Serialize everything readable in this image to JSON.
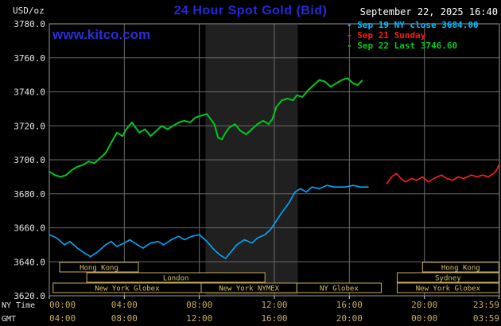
{
  "header": {
    "units_label": "USD/oz",
    "title": "24 Hour Spot Gold (Bid)",
    "datetime": "September 22, 2025 16:40",
    "watermark": "www.kitco.com",
    "legend": [
      {
        "label": "- Sep 19 NY close 3684.00",
        "color": "#00c0ff"
      },
      {
        "label": "- Sep 21 Sunday",
        "color": "#ff1a1a"
      },
      {
        "label": "- Sep 22 Last 3746.60",
        "color": "#00cc22"
      }
    ]
  },
  "axes": {
    "ny_time_label": "NY Time",
    "gmt_label": "GMT",
    "x_tick_hours": [
      0,
      4,
      8,
      12,
      16,
      20,
      23.983
    ],
    "ny_tick_labels": [
      "00:00",
      "04:00",
      "08:00",
      "12:00",
      "16:00",
      "20:00",
      "23:59"
    ],
    "gmt_tick_labels": [
      "04:00",
      "08:00",
      "12:00",
      "16:00",
      "20:00",
      "00:00",
      "03:59"
    ],
    "y_tick_labels": [
      "3780.0",
      "3760.0",
      "3740.0",
      "3720.0",
      "3700.0",
      "3680.0",
      "3660.0",
      "3640.0",
      "3620.0"
    ],
    "y_tick_values": [
      3780,
      3760,
      3740,
      3720,
      3700,
      3680,
      3660,
      3640,
      3620
    ]
  },
  "shaded_band": {
    "start": 8.33,
    "end": 13.25,
    "color": "#202020"
  },
  "sessions": [
    {
      "label": "Hong Kong",
      "row": 0,
      "start": 0.55,
      "end": 4.75
    },
    {
      "label": "Hong Kong",
      "row": 0,
      "start": 19.9,
      "end": 23.97
    },
    {
      "label": "London",
      "row": 1,
      "start": 2.0,
      "end": 11.5
    },
    {
      "label": "Sydney",
      "row": 1,
      "start": 18.55,
      "end": 23.97
    },
    {
      "label": "New York Globex",
      "row": 2,
      "start": 0.2,
      "end": 8.1
    },
    {
      "label": "New York NYMEX",
      "row": 2,
      "start": 8.1,
      "end": 13.2
    },
    {
      "label": "NY Globex",
      "row": 2,
      "start": 13.2,
      "end": 17.7
    },
    {
      "label": "New York Globex",
      "row": 2,
      "start": 18.55,
      "end": 23.97
    }
  ],
  "chart_data": {
    "type": "line",
    "title": "24 Hour Spot Gold (Bid)",
    "x_unit": "hour (NY time)",
    "xlim": [
      0,
      24
    ],
    "ylim": [
      3620,
      3780
    ],
    "y_gridline_step": 20,
    "grid": true,
    "legend_position": "top-right",
    "series": [
      {
        "id": "sep19",
        "name": "Sep 19 NY close 3684.00",
        "color": "#00aaff",
        "width": 1.6,
        "points": [
          [
            0,
            3656
          ],
          [
            0.4,
            3654
          ],
          [
            0.8,
            3650
          ],
          [
            1.1,
            3652
          ],
          [
            1.5,
            3648
          ],
          [
            1.9,
            3645
          ],
          [
            2.2,
            3643
          ],
          [
            2.6,
            3646
          ],
          [
            3.0,
            3650
          ],
          [
            3.3,
            3652
          ],
          [
            3.6,
            3649
          ],
          [
            4.0,
            3651
          ],
          [
            4.3,
            3653
          ],
          [
            4.7,
            3650
          ],
          [
            5.0,
            3648
          ],
          [
            5.4,
            3651
          ],
          [
            5.8,
            3652
          ],
          [
            6.1,
            3650
          ],
          [
            6.5,
            3653
          ],
          [
            6.9,
            3655
          ],
          [
            7.2,
            3653
          ],
          [
            7.6,
            3655
          ],
          [
            8.0,
            3656
          ],
          [
            8.4,
            3652
          ],
          [
            8.8,
            3647
          ],
          [
            9.1,
            3644
          ],
          [
            9.4,
            3642
          ],
          [
            9.7,
            3646
          ],
          [
            10.0,
            3650
          ],
          [
            10.4,
            3653
          ],
          [
            10.8,
            3651
          ],
          [
            11.1,
            3654
          ],
          [
            11.5,
            3656
          ],
          [
            11.8,
            3659
          ],
          [
            12.1,
            3664
          ],
          [
            12.4,
            3669
          ],
          [
            12.8,
            3675
          ],
          [
            13.1,
            3681
          ],
          [
            13.4,
            3683
          ],
          [
            13.7,
            3681
          ],
          [
            14.0,
            3684
          ],
          [
            14.4,
            3683
          ],
          [
            14.8,
            3685
          ],
          [
            15.2,
            3684
          ],
          [
            15.8,
            3684
          ],
          [
            16.2,
            3685
          ],
          [
            16.6,
            3684
          ],
          [
            17.0,
            3684
          ]
        ]
      },
      {
        "id": "sep21",
        "name": "Sep 21 Sunday",
        "color": "#ff2020",
        "width": 1.6,
        "points": [
          [
            18.0,
            3686
          ],
          [
            18.25,
            3690
          ],
          [
            18.5,
            3692
          ],
          [
            18.75,
            3689
          ],
          [
            19.0,
            3687
          ],
          [
            19.3,
            3689
          ],
          [
            19.6,
            3688
          ],
          [
            19.9,
            3690
          ],
          [
            20.2,
            3687
          ],
          [
            20.5,
            3689
          ],
          [
            20.9,
            3691
          ],
          [
            21.2,
            3689
          ],
          [
            21.5,
            3688
          ],
          [
            21.8,
            3690
          ],
          [
            22.1,
            3689
          ],
          [
            22.5,
            3691
          ],
          [
            22.8,
            3690
          ],
          [
            23.1,
            3691
          ],
          [
            23.4,
            3690
          ],
          [
            23.7,
            3692
          ],
          [
            23.85,
            3694
          ],
          [
            23.98,
            3697
          ]
        ]
      },
      {
        "id": "sep22",
        "name": "Sep 22 Last 3746.60",
        "color": "#00c81e",
        "width": 2,
        "points": [
          [
            0,
            3693
          ],
          [
            0.3,
            3691
          ],
          [
            0.6,
            3690
          ],
          [
            0.9,
            3691
          ],
          [
            1.2,
            3694
          ],
          [
            1.5,
            3696
          ],
          [
            1.8,
            3697
          ],
          [
            2.1,
            3699
          ],
          [
            2.4,
            3698
          ],
          [
            2.7,
            3701
          ],
          [
            3.0,
            3704
          ],
          [
            3.3,
            3710
          ],
          [
            3.6,
            3716
          ],
          [
            3.9,
            3714
          ],
          [
            4.1,
            3718
          ],
          [
            4.4,
            3722
          ],
          [
            4.6,
            3719
          ],
          [
            4.8,
            3716
          ],
          [
            5.1,
            3718
          ],
          [
            5.4,
            3714
          ],
          [
            5.7,
            3717
          ],
          [
            6.0,
            3720
          ],
          [
            6.3,
            3718
          ],
          [
            6.6,
            3720
          ],
          [
            6.9,
            3722
          ],
          [
            7.2,
            3723
          ],
          [
            7.5,
            3722
          ],
          [
            7.8,
            3725
          ],
          [
            8.1,
            3726
          ],
          [
            8.4,
            3727
          ],
          [
            8.6,
            3724
          ],
          [
            8.8,
            3721
          ],
          [
            9.0,
            3713
          ],
          [
            9.2,
            3712
          ],
          [
            9.4,
            3716
          ],
          [
            9.6,
            3719
          ],
          [
            9.9,
            3721
          ],
          [
            10.2,
            3717
          ],
          [
            10.5,
            3715
          ],
          [
            10.8,
            3718
          ],
          [
            11.1,
            3721
          ],
          [
            11.4,
            3723
          ],
          [
            11.7,
            3721
          ],
          [
            11.9,
            3724
          ],
          [
            12.1,
            3731
          ],
          [
            12.4,
            3735
          ],
          [
            12.7,
            3736
          ],
          [
            13.0,
            3735
          ],
          [
            13.2,
            3738
          ],
          [
            13.5,
            3737
          ],
          [
            13.8,
            3741
          ],
          [
            14.1,
            3744
          ],
          [
            14.4,
            3747
          ],
          [
            14.7,
            3746
          ],
          [
            15.0,
            3743
          ],
          [
            15.3,
            3745
          ],
          [
            15.6,
            3747
          ],
          [
            15.9,
            3748
          ],
          [
            16.2,
            3745
          ],
          [
            16.45,
            3744
          ],
          [
            16.67,
            3746.6
          ]
        ]
      }
    ]
  }
}
